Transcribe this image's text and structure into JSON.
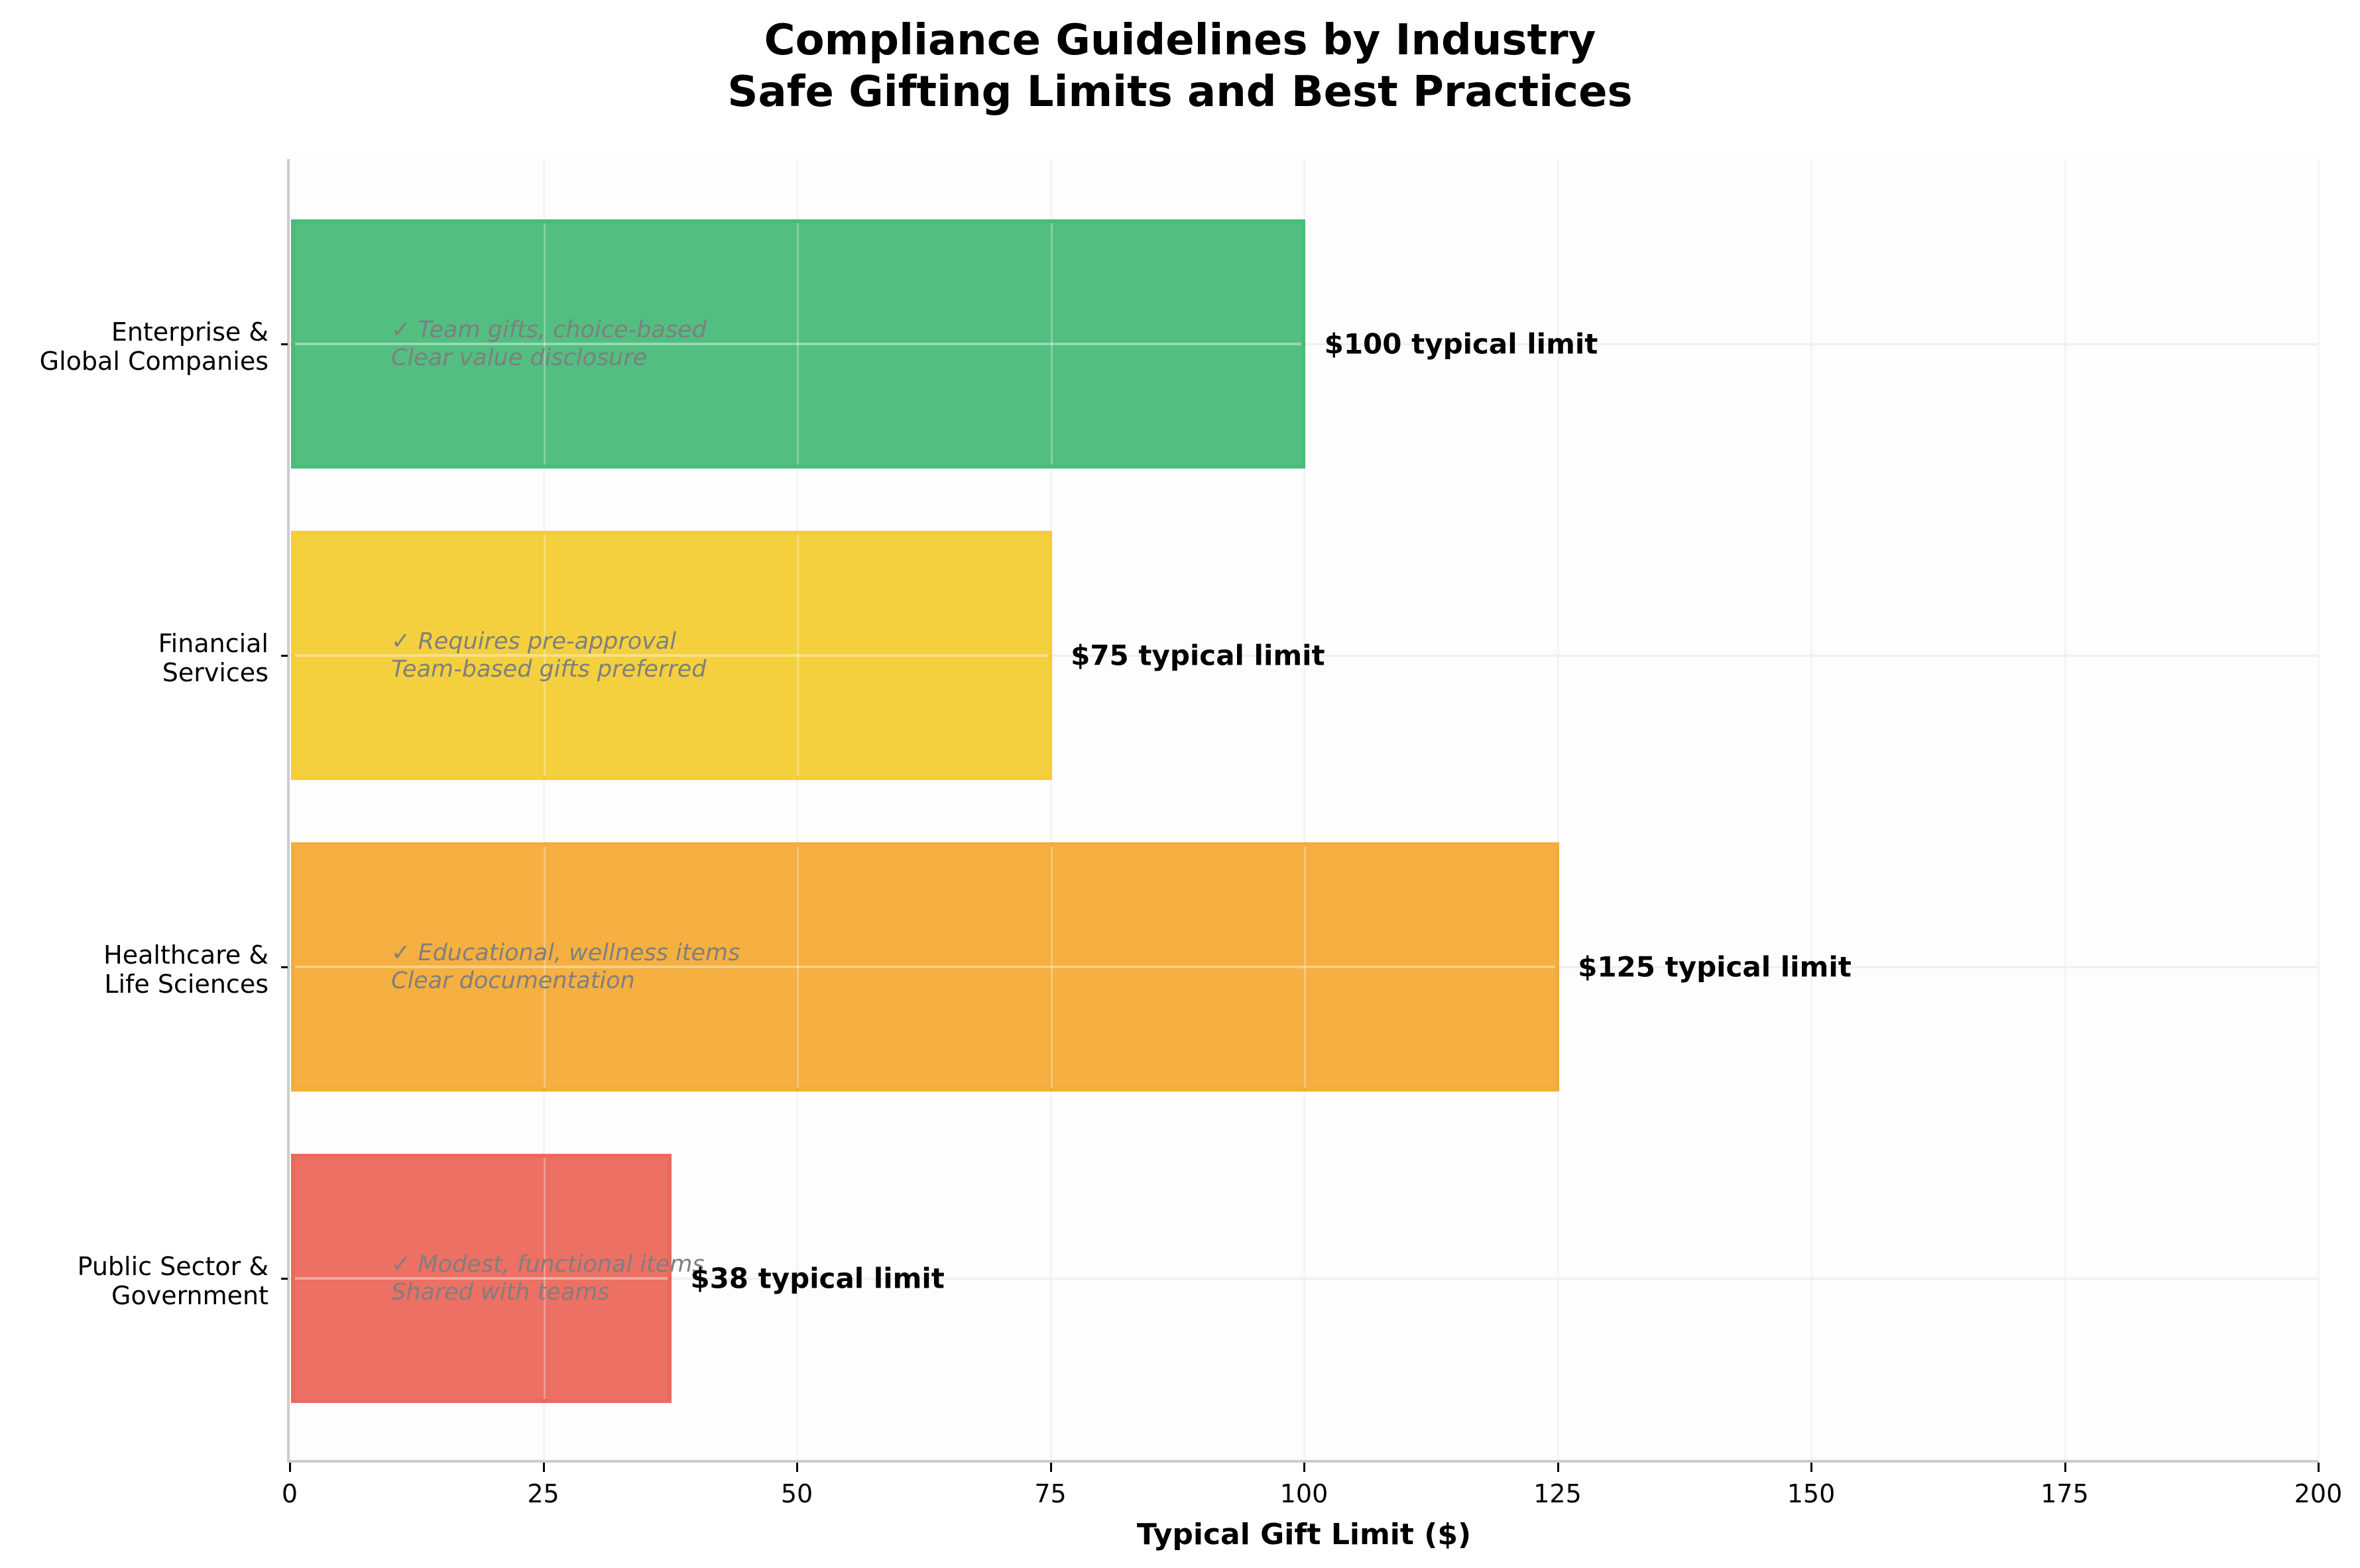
{
  "chart": {
    "title_line1": "Compliance Guidelines by Industry",
    "title_line2": "Safe Gifting Limits and Best Practices",
    "xlabel": "Typical Gift Limit ($)",
    "xticks": [
      "0",
      "25",
      "50",
      "75",
      "100",
      "125",
      "150",
      "175",
      "200"
    ],
    "bars": [
      {
        "label_line1": "Enterprise &",
        "label_line2": "Global Companies",
        "value": 100,
        "value_label": "$100 typical limit",
        "note_line1": "✓ Team gifts, choice-based",
        "note_line2": "Clear value disclosure",
        "color": "#27AE60"
      },
      {
        "label_line1": "Financial",
        "label_line2": "Services",
        "value": 75,
        "value_label": "$75 typical limit",
        "note_line1": "✓ Requires pre-approval",
        "note_line2": "Team-based gifts preferred",
        "color": "#F1C40F"
      },
      {
        "label_line1": "Healthcare &",
        "label_line2": "Life Sciences",
        "value": 125,
        "value_label": "$125 typical limit",
        "note_line1": "✓ Educational, wellness items",
        "note_line2": "Clear documentation",
        "color": "#F39C12"
      },
      {
        "label_line1": "Public Sector &",
        "label_line2": "Government",
        "value": 37.5,
        "value_label": "$38 typical limit",
        "note_line1": "✓ Modest, functional items",
        "note_line2": "Shared with teams",
        "color": "#E74C3C"
      }
    ]
  },
  "chart_data": {
    "type": "bar",
    "orientation": "horizontal",
    "title": "Compliance Guidelines by Industry\nSafe Gifting Limits and Best Practices",
    "xlabel": "Typical Gift Limit ($)",
    "ylabel": "",
    "categories": [
      "Enterprise & Global Companies",
      "Financial Services",
      "Healthcare & Life Sciences",
      "Public Sector & Government"
    ],
    "values": [
      100,
      75,
      125,
      37.5
    ],
    "value_labels": [
      "$100 typical limit",
      "$75 typical limit",
      "$125 typical limit",
      "$38 typical limit"
    ],
    "annotations": [
      "✓ Team gifts, choice-based / Clear value disclosure",
      "✓ Requires pre-approval / Team-based gifts preferred",
      "✓ Educational, wellness items / Clear documentation",
      "✓ Modest, functional items / Shared with teams"
    ],
    "colors": [
      "#27AE60",
      "#F1C40F",
      "#F39C12",
      "#E74C3C"
    ],
    "xlim": [
      0,
      200
    ],
    "xticks": [
      0,
      25,
      50,
      75,
      100,
      125,
      150,
      175,
      200
    ],
    "grid": true,
    "legend": null
  }
}
